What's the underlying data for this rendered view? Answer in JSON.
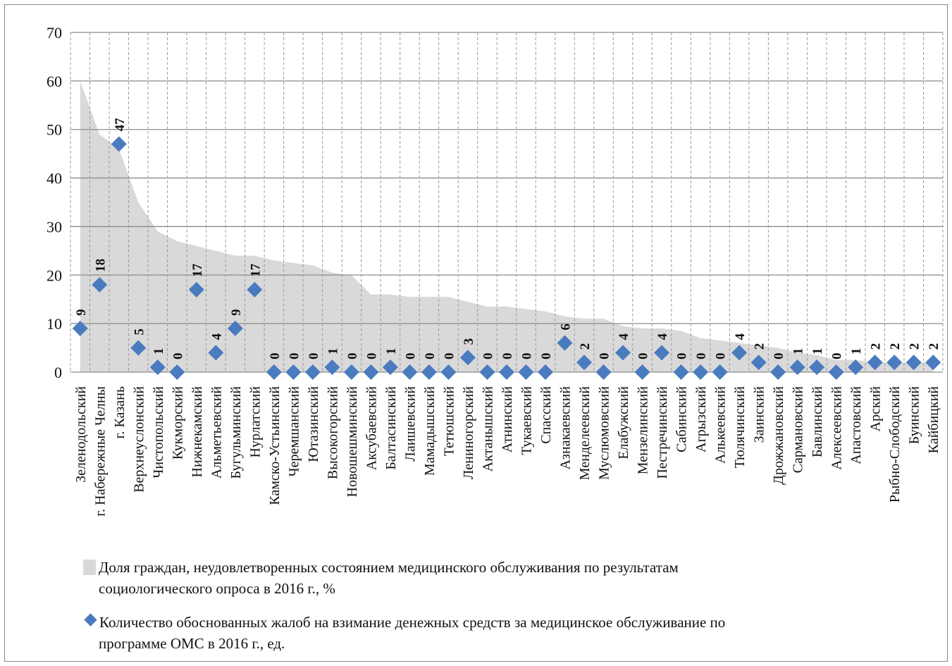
{
  "chart_data": {
    "type": "area+scatter",
    "ylim": [
      0,
      70
    ],
    "yticks": [
      "0",
      "10",
      "20",
      "30",
      "40",
      "50",
      "60",
      "70"
    ],
    "grid": true,
    "categories": [
      "Зеленодольский",
      "г. Набережные Челны",
      "г. Казань",
      "Верхнеуслонский",
      "Чистопольский",
      "Кукморский",
      "Нижнекамский",
      "Альметьевский",
      "Бугульминский",
      "Нурлатский",
      "Камско-Устьинский",
      "Черемшанский",
      "Ютазинский",
      "Высокогорский",
      "Новошешминский",
      "Аксубаевский",
      "Балтасинский",
      "Лаишевский",
      "Мамадышский",
      "Тетюшский",
      "Лениногорский",
      "Актанышский",
      "Атнинский",
      "Тукаевский",
      "Спасский",
      "Азнакаевский",
      "Менделеевский",
      "Муслюмовский",
      "Елабужский",
      "Мензелинский",
      "Пестречинский",
      "Сабинский",
      "Агрызский",
      "Алькеевский",
      "Тюлячинский",
      "Заинский",
      "Дрожжановский",
      "Сармановский",
      "Бавлинский",
      "Алексеевский",
      "Апастовский",
      "Арский",
      "Рыбно-Слободский",
      "Буинский",
      "Кайбицкий"
    ],
    "series": [
      {
        "name": "Доля граждан, неудовлетворенных состоянием медицинского обслуживания по результатам социологического опроса в 2016 г., %",
        "type": "area",
        "color": "#d9d9d9",
        "values": [
          60,
          49,
          46,
          35,
          29,
          27,
          26,
          25,
          24,
          24,
          23,
          22.5,
          22,
          20.5,
          20,
          16,
          16,
          15.5,
          15.5,
          15.5,
          14.5,
          13.5,
          13.5,
          13,
          12.5,
          11.5,
          11,
          11,
          9.5,
          9,
          9,
          8.5,
          7,
          6.5,
          6,
          5.5,
          5,
          4,
          3.5,
          2.5,
          2.5,
          2,
          2,
          2,
          2
        ]
      },
      {
        "name": "Количество обоснованных жалоб на взимание денежных средств за медицинское обслуживание по программе ОМС в 2016 г., ед.",
        "type": "scatter",
        "marker": "diamond",
        "color": "#4a7bbf",
        "values": [
          9,
          18,
          47,
          5,
          1,
          0,
          17,
          4,
          9,
          17,
          0,
          0,
          0,
          1,
          0,
          0,
          1,
          0,
          0,
          0,
          3,
          0,
          0,
          0,
          0,
          6,
          2,
          0,
          4,
          0,
          4,
          0,
          0,
          0,
          4,
          2,
          0,
          1,
          1,
          0,
          1,
          2,
          2,
          2,
          2
        ],
        "data_labels": [
          "9",
          "18",
          "47",
          "5",
          "1",
          "0",
          "17",
          "4",
          "9",
          "17",
          "0",
          "0",
          "0",
          "1",
          "0",
          "0",
          "1",
          "0",
          "0",
          "0",
          "3",
          "0",
          "0",
          "0",
          "0",
          "6",
          "2",
          "0",
          "4",
          "0",
          "4",
          "0",
          "0",
          "0",
          "4",
          "2",
          "0",
          "1",
          "1",
          "0",
          "1",
          "2",
          "2",
          "2",
          "2"
        ]
      }
    ],
    "legend_position": "bottom"
  },
  "legend": {
    "area_line1": "Доля граждан, неудовлетворенных состоянием медицинского обслуживания по результатам",
    "area_line2": "социологического опроса в 2016 г., %",
    "diamond_line1": "Количество обоснованных жалоб на взимание денежных средств за медицинское обслуживание по",
    "diamond_line2": "программе ОМС в 2016 г., ед."
  }
}
